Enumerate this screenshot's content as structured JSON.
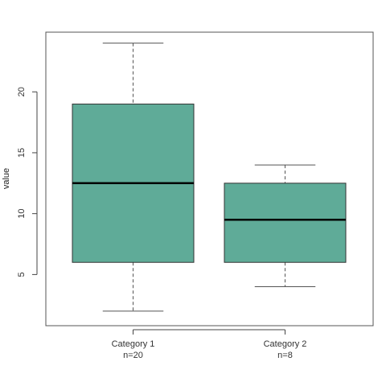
{
  "chart_data": {
    "type": "boxplot",
    "title": "",
    "xlabel": "",
    "ylabel": "value",
    "ylim": [
      0.8,
      24.9
    ],
    "y_ticks": [
      5,
      10,
      15,
      20
    ],
    "grid": false,
    "box_color": "#5fab98",
    "categories": [
      {
        "label": "Category 1",
        "n_label": "n=20",
        "min": 2,
        "q1": 6,
        "median": 12.5,
        "q3": 19,
        "max": 24
      },
      {
        "label": "Category 2",
        "n_label": "n=8",
        "min": 4,
        "q1": 6,
        "median": 9.5,
        "q3": 12.5,
        "max": 14
      }
    ]
  }
}
